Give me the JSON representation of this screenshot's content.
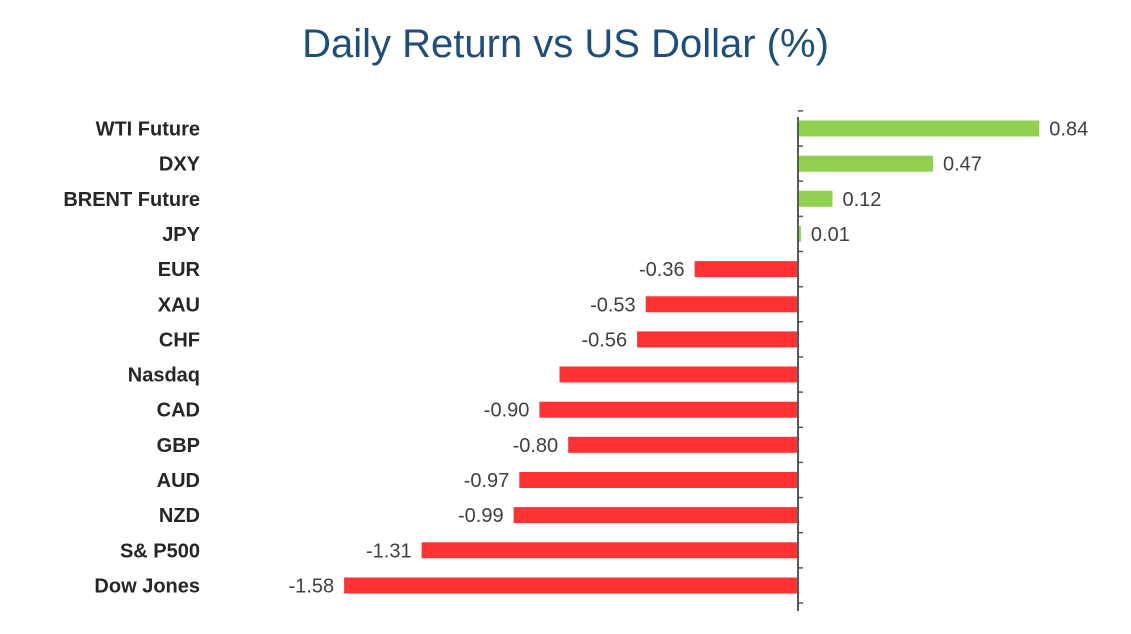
{
  "chart_data": {
    "type": "bar",
    "orientation": "horizontal",
    "title": "Daily Return vs US Dollar (%)",
    "xlabel": "",
    "ylabel": "",
    "categories": [
      "WTI Future",
      "DXY",
      "BRENT Future",
      "JPY",
      "EUR",
      "XAU",
      "CHF",
      "Nasdaq",
      "CAD",
      "GBP",
      "AUD",
      "NZD",
      "S& P500",
      "Dow Jones"
    ],
    "values": [
      0.84,
      0.47,
      0.12,
      0.01,
      -0.36,
      -0.53,
      -0.56,
      -0.83,
      -0.9,
      -0.8,
      -0.97,
      -0.99,
      -1.31,
      -1.58
    ],
    "data_labels": [
      "0.84",
      "0.47",
      "0.12",
      "0.01",
      "-0.36",
      "-0.53",
      "-0.56",
      "",
      "-0.90",
      "-0.80",
      "-0.97",
      "-0.99",
      "-1.31",
      "-1.58"
    ],
    "xlim": [
      -1.58,
      1.0
    ],
    "grid": false,
    "legend": "none",
    "colors": {
      "positive": "#92d050",
      "negative": "#ff3333",
      "title": "#1f4e79",
      "axis": "#595959"
    }
  }
}
